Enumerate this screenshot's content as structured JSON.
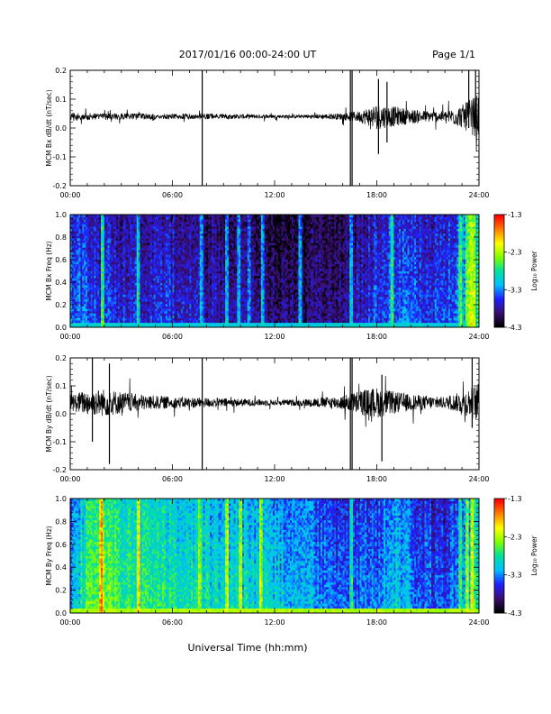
{
  "header": {
    "title": "2017/01/16  00:00-24:00 UT",
    "page": "Page 1/1"
  },
  "footer": {
    "xlabel": "Universal Time (hh:mm)"
  },
  "colors": {
    "trace": "#000000",
    "axes": "#000000",
    "colormap": [
      "#000000",
      "#3b0f70",
      "#1f1fff",
      "#00bfff",
      "#00e0a0",
      "#7fff00",
      "#ffff00",
      "#ff8000",
      "#ff0000"
    ]
  },
  "chart_data": [
    {
      "type": "line",
      "ylabel": "MCM Bx dB/dt (nT/sec)",
      "x_ticks": [
        "00:00",
        "06:00",
        "12:00",
        "18:00",
        "24:00"
      ],
      "y_ticks": [
        "-0.2",
        "-0.1",
        "0.0",
        "0.1",
        "0.2"
      ],
      "xlim": [
        0,
        24
      ],
      "ylim": [
        -0.2,
        0.2
      ],
      "baseline": 0.04,
      "noise_profile": {
        "x": [
          0,
          1,
          2,
          3,
          4,
          5,
          6,
          7,
          8,
          9,
          10,
          11,
          12,
          13,
          14,
          15,
          16,
          17,
          18,
          19,
          20,
          21,
          22,
          23,
          24
        ],
        "amplitude": [
          0.012,
          0.012,
          0.011,
          0.011,
          0.011,
          0.01,
          0.01,
          0.01,
          0.01,
          0.009,
          0.008,
          0.007,
          0.006,
          0.006,
          0.007,
          0.009,
          0.012,
          0.02,
          0.045,
          0.035,
          0.025,
          0.02,
          0.018,
          0.04,
          0.08
        ]
      },
      "spikes": [
        {
          "time": 7.75,
          "min": -0.2,
          "max": 0.2
        },
        {
          "time": 16.45,
          "min": -0.2,
          "max": 0.2
        },
        {
          "time": 16.55,
          "min": -0.2,
          "max": 0.2
        },
        {
          "time": 18.1,
          "min": -0.09,
          "max": 0.17
        },
        {
          "time": 18.6,
          "min": -0.05,
          "max": 0.16
        },
        {
          "time": 23.4,
          "min": 0.0,
          "max": 0.2
        },
        {
          "time": 23.8,
          "min": 0.0,
          "max": 0.2
        }
      ]
    },
    {
      "type": "heatmap",
      "ylabel": "MCM Bx Freq (Hz)",
      "x_ticks": [
        "00:00",
        "06:00",
        "12:00",
        "18:00",
        "24:00"
      ],
      "y_ticks": [
        "0.0",
        "0.2",
        "0.4",
        "0.6",
        "0.8",
        "1.0"
      ],
      "xlim": [
        0,
        24
      ],
      "ylim": [
        0,
        1
      ],
      "colorbar": {
        "label": "Log₁₀ Power",
        "ticks": [
          "-1.3",
          "-2.3",
          "-3.3",
          "-4.3"
        ],
        "range": [
          -4.3,
          -1.3
        ]
      },
      "base_power": {
        "x": [
          0,
          2,
          4,
          6,
          8,
          10,
          12,
          14,
          16,
          17,
          18,
          19,
          20,
          21,
          22,
          23,
          24
        ],
        "value": [
          -3.4,
          -3.5,
          -3.6,
          -3.6,
          -3.7,
          -3.8,
          -3.9,
          -3.9,
          -3.8,
          -3.7,
          -3.4,
          -3.3,
          -3.4,
          -3.5,
          -3.5,
          -3.2,
          -2.6
        ]
      },
      "low_freq_power": -3.0,
      "bright_columns": [
        1.9,
        4.0,
        7.7,
        9.2,
        9.9,
        10.5,
        11.3,
        13.5,
        16.5,
        18.9,
        22.9,
        23.3,
        23.5,
        23.7
      ]
    },
    {
      "type": "line",
      "ylabel": "MCM By dB/dt (nT/sec)",
      "x_ticks": [
        "00:00",
        "06:00",
        "12:00",
        "18:00",
        "24:00"
      ],
      "y_ticks": [
        "-0.2",
        "-0.1",
        "0.0",
        "0.1",
        "0.2"
      ],
      "xlim": [
        0,
        24
      ],
      "ylim": [
        -0.2,
        0.2
      ],
      "baseline": 0.04,
      "noise_profile": {
        "x": [
          0,
          1,
          2,
          3,
          4,
          5,
          6,
          7,
          8,
          9,
          10,
          11,
          12,
          13,
          14,
          15,
          16,
          17,
          18,
          19,
          20,
          21,
          22,
          23,
          24
        ],
        "amplitude": [
          0.03,
          0.045,
          0.05,
          0.04,
          0.03,
          0.025,
          0.02,
          0.02,
          0.018,
          0.016,
          0.014,
          0.012,
          0.01,
          0.011,
          0.014,
          0.02,
          0.025,
          0.045,
          0.055,
          0.04,
          0.03,
          0.025,
          0.02,
          0.04,
          0.07
        ]
      },
      "spikes": [
        {
          "time": 1.3,
          "min": -0.1,
          "max": 0.2
        },
        {
          "time": 2.3,
          "min": -0.18,
          "max": 0.18
        },
        {
          "time": 7.75,
          "min": -0.2,
          "max": 0.2
        },
        {
          "time": 16.45,
          "min": -0.2,
          "max": 0.2
        },
        {
          "time": 16.55,
          "min": -0.2,
          "max": 0.2
        },
        {
          "time": 18.3,
          "min": -0.17,
          "max": 0.14
        },
        {
          "time": 23.6,
          "min": -0.05,
          "max": 0.2
        }
      ]
    },
    {
      "type": "heatmap",
      "ylabel": "MCM By Freq (Hz)",
      "x_ticks": [
        "00:00",
        "06:00",
        "12:00",
        "18:00",
        "24:00"
      ],
      "y_ticks": [
        "0.0",
        "0.2",
        "0.4",
        "0.6",
        "0.8",
        "1.0"
      ],
      "xlim": [
        0,
        24
      ],
      "ylim": [
        0,
        1
      ],
      "colorbar": {
        "label": "Log₁₀ Power",
        "ticks": [
          "-1.3",
          "-2.3",
          "-3.3",
          "-4.3"
        ],
        "range": [
          -4.3,
          -1.3
        ]
      },
      "base_power": {
        "x": [
          0,
          1,
          2,
          3,
          4,
          6,
          8,
          10,
          12,
          14,
          16,
          17,
          18,
          19,
          20,
          21,
          22,
          23,
          24
        ],
        "value": [
          -3.2,
          -2.6,
          -2.4,
          -2.6,
          -2.7,
          -2.8,
          -2.9,
          -2.9,
          -3.0,
          -3.2,
          -3.4,
          -3.4,
          -3.3,
          -3.0,
          -3.2,
          -3.4,
          -3.5,
          -3.2,
          -2.6
        ]
      },
      "low_freq_power": -2.3,
      "bright_columns": [
        1.8,
        4.0,
        7.6,
        9.2,
        10.0,
        11.2,
        16.5,
        22.9,
        23.3,
        23.6
      ]
    }
  ]
}
